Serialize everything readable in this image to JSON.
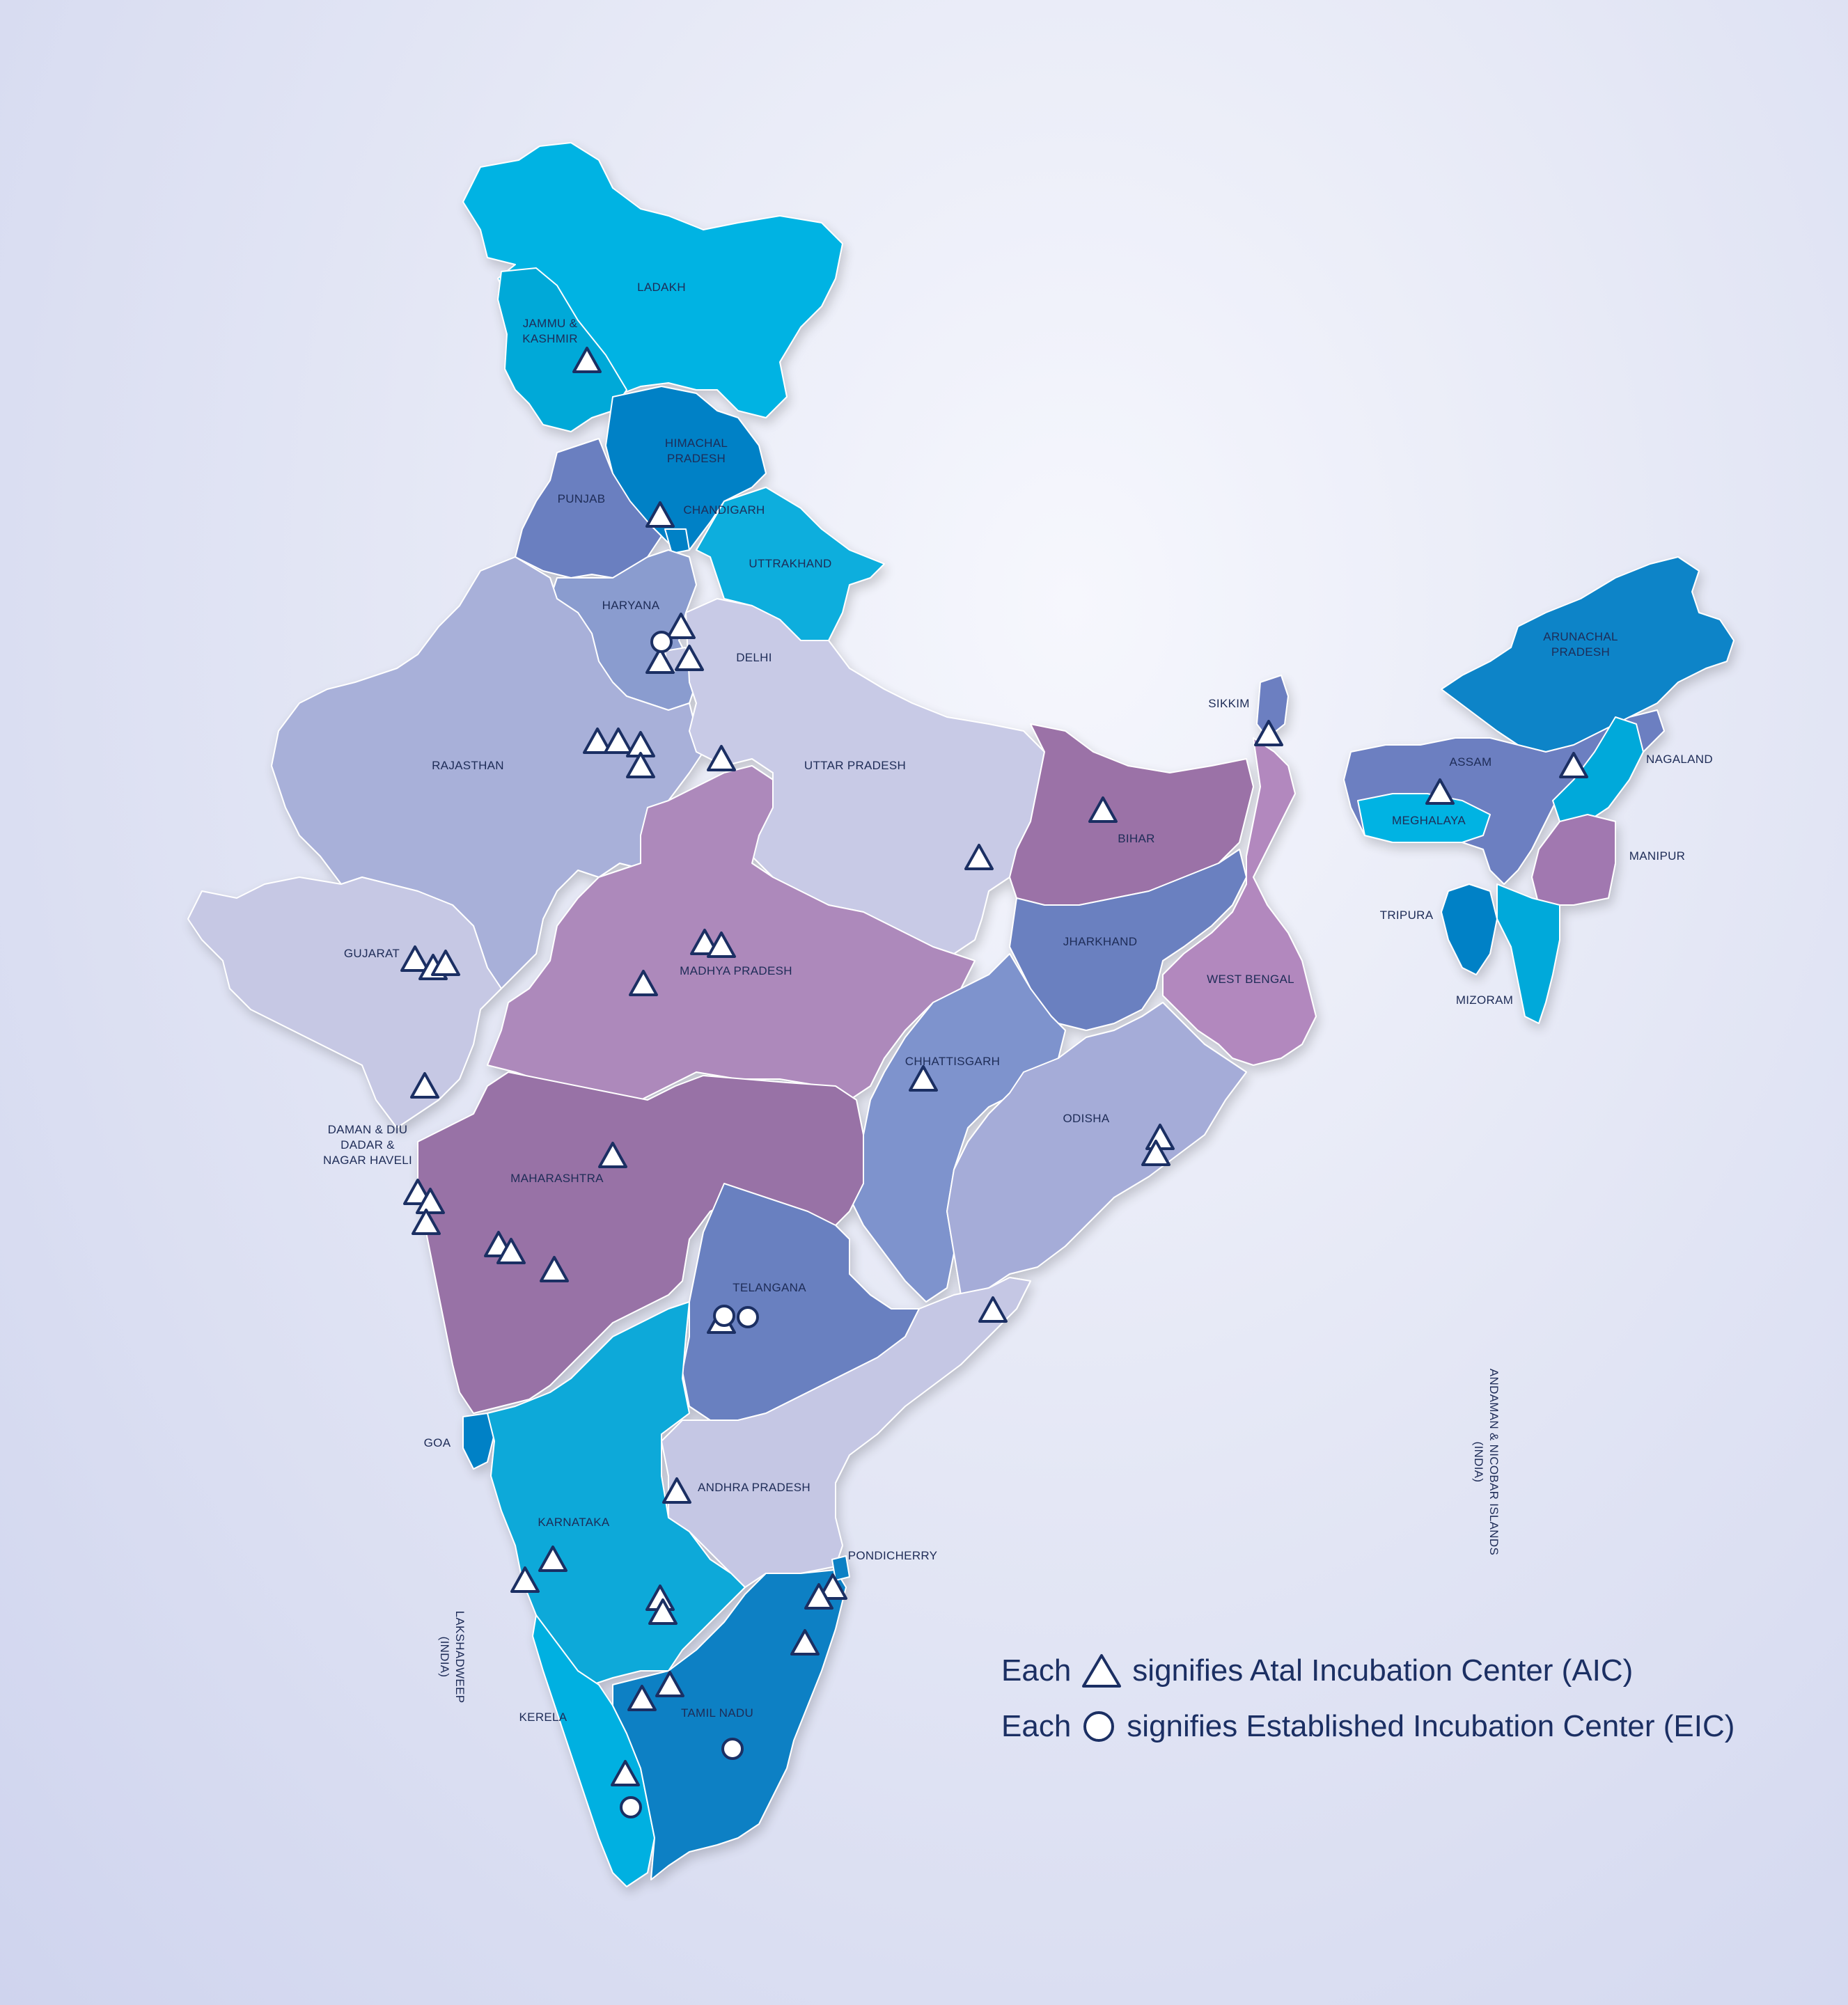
{
  "states": [
    {
      "id": "ladakh",
      "label": "LADAKH",
      "color": "#06b3e3"
    },
    {
      "id": "jammu-kashmir",
      "label": "JAMMU &\nKASHMIR",
      "color": "#00a9d8"
    },
    {
      "id": "himachal-pradesh",
      "label": "HIMACHAL\nPRADESH",
      "color": "#0681c6"
    },
    {
      "id": "punjab",
      "label": "PUNJAB",
      "color": "#6b7fc0"
    },
    {
      "id": "chandigarh",
      "label": "CHANDIGARH",
      "color": "#0681c6"
    },
    {
      "id": "uttrakhand",
      "label": "UTTRAKHAND",
      "color": "#08aedd"
    },
    {
      "id": "haryana",
      "label": "HARYANA",
      "color": "#8a9ccf"
    },
    {
      "id": "delhi",
      "label": "DELHI",
      "color": "#c4c7e3"
    },
    {
      "id": "rajasthan",
      "label": "RAJASTHAN",
      "color": "#a8b0d9"
    },
    {
      "id": "uttar-pradesh",
      "label": "UTTAR PRADESH",
      "color": "#c8cae6"
    },
    {
      "id": "gujarat",
      "label": "GUJARAT",
      "color": "#c6c8e4"
    },
    {
      "id": "madhya-pradesh",
      "label": "MADHYA PRADESH",
      "color": "#ad89bb"
    },
    {
      "id": "bihar",
      "label": "BIHAR",
      "color": "#9b72a7"
    },
    {
      "id": "jharkhand",
      "label": "JHARKHAND",
      "color": "#6b80c0"
    },
    {
      "id": "west-bengal",
      "label": "WEST BENGAL",
      "color": "#b288be"
    },
    {
      "id": "chhattisgarh",
      "label": "CHHATTISGARH",
      "color": "#7e93cd"
    },
    {
      "id": "odisha",
      "label": "ODISHA",
      "color": "#a5acd8"
    },
    {
      "id": "maharashtra",
      "label": "MAHARASHTRA",
      "color": "#9872a6"
    },
    {
      "id": "telangana",
      "label": "TELANGANA",
      "color": "#6980c0"
    },
    {
      "id": "andhra-pradesh",
      "label": "ANDHRA PRADESH",
      "color": "#c5c7e4"
    },
    {
      "id": "karnataka",
      "label": "KARNATAKA",
      "color": "#0aa9d9"
    },
    {
      "id": "goa",
      "label": "GOA",
      "color": "#0681c6"
    },
    {
      "id": "kerela",
      "label": "KERELA",
      "color": "#06b0e1"
    },
    {
      "id": "tamil-nadu",
      "label": "TAMIL NADU",
      "color": "#0880c4"
    },
    {
      "id": "pondicherry",
      "label": "PONDICHERRY",
      "color": "#0880c4"
    },
    {
      "id": "sikkim",
      "label": "SIKKIM",
      "color": "#6c7fc1"
    },
    {
      "id": "arunachal-pradesh",
      "label": "ARUNACHAL\nPRADESH",
      "color": "#0d84c8"
    },
    {
      "id": "assam",
      "label": "ASSAM",
      "color": "#6c7fc1"
    },
    {
      "id": "meghalaya",
      "label": "MEGHALAYA",
      "color": "#06b3e3"
    },
    {
      "id": "nagaland",
      "label": "NAGALAND",
      "color": "#00a9da"
    },
    {
      "id": "manipur",
      "label": "MANIPUR",
      "color": "#a178b0"
    },
    {
      "id": "tripura",
      "label": "TRIPURA",
      "color": "#0681c6"
    },
    {
      "id": "mizoram",
      "label": "MIZORAM",
      "color": "#00a9da"
    },
    {
      "id": "daman-diu",
      "label": "DAMAN & DIU\nDADAR &\nNAGAR HAVELI",
      "color": "#9872a6"
    },
    {
      "id": "lakshadweep",
      "label": "LAKSHADWEEP\n(INDIA)",
      "color": "#1e2c57"
    },
    {
      "id": "andaman",
      "label": "ANDAMAN & NICOBAR ISLANDS\n(INDIA)",
      "color": "#1e2c57"
    }
  ],
  "legend": {
    "aic": {
      "prefix": "Each",
      "text": "signifies Atal Incubation Center (AIC)"
    },
    "eic": {
      "prefix": "Each",
      "text": "signifies Established Incubation Center (EIC)"
    }
  },
  "marker_counts": {
    "aic": 45,
    "eic": 5
  },
  "colors": {
    "marker_stroke": "#1b2f63",
    "marker_fill": "#ffffff",
    "background": "#dfe3f3",
    "text": "#1b2f63"
  }
}
